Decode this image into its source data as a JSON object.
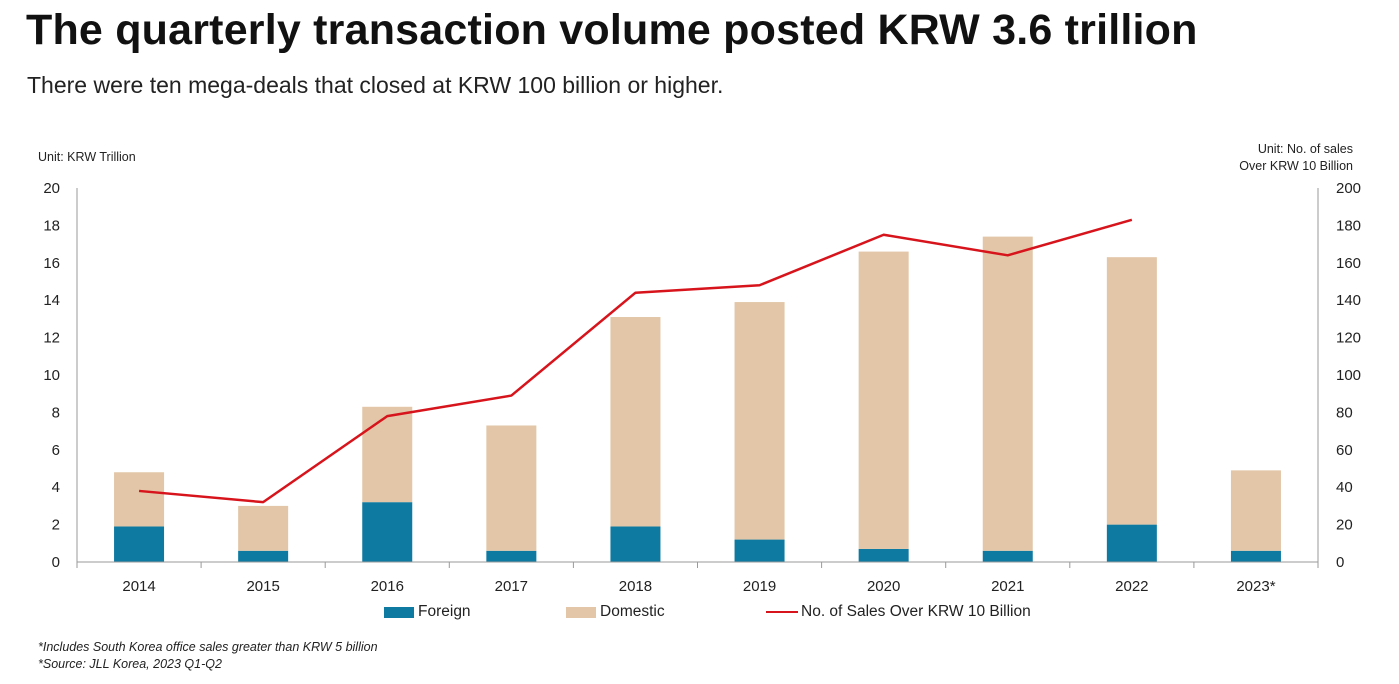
{
  "title": "The quarterly transaction volume posted KRW 3.6 trillion",
  "subtitle": "There were ten mega-deals that closed at KRW 100 billion or higher.",
  "footnotes": [
    "*Includes South Korea office sales greater than KRW 5 billion",
    "*Source: JLL Korea, 2023 Q1-Q2"
  ],
  "chart_data": {
    "type": "bar",
    "stacked": true,
    "categories": [
      "2014",
      "2015",
      "2016",
      "2017",
      "2018",
      "2019",
      "2020",
      "2021",
      "2022",
      "2023*"
    ],
    "y_left": {
      "unit_label": "Unit: KRW Trillion",
      "ylim": [
        0,
        20
      ],
      "ticks": [
        0,
        2,
        4,
        6,
        8,
        10,
        12,
        14,
        16,
        18,
        20
      ]
    },
    "y_right": {
      "unit_label_line1": "Unit: No. of sales",
      "unit_label_line2": "Over KRW 10 Billion",
      "ylim": [
        0,
        200
      ],
      "ticks": [
        0,
        20,
        40,
        60,
        80,
        100,
        120,
        140,
        160,
        180,
        200
      ]
    },
    "series": [
      {
        "name": "Foreign",
        "type": "bar",
        "axis": "left",
        "color": "#0f7aa1",
        "values": [
          1.9,
          0.6,
          3.2,
          0.6,
          1.9,
          1.2,
          0.7,
          0.6,
          2.0,
          0.6
        ]
      },
      {
        "name": "Domestic",
        "type": "bar",
        "axis": "left",
        "color": "#e2c6a7",
        "values": [
          2.9,
          2.4,
          5.1,
          6.7,
          11.2,
          12.7,
          15.9,
          16.8,
          14.3,
          4.3
        ]
      },
      {
        "name": "No. of Sales Over KRW 10 Billion",
        "type": "line",
        "axis": "right",
        "color": "#d7141c",
        "values": [
          38,
          32,
          78,
          89,
          144,
          148,
          175,
          164,
          183,
          null
        ]
      }
    ],
    "grid": false,
    "legend_position": "bottom"
  }
}
